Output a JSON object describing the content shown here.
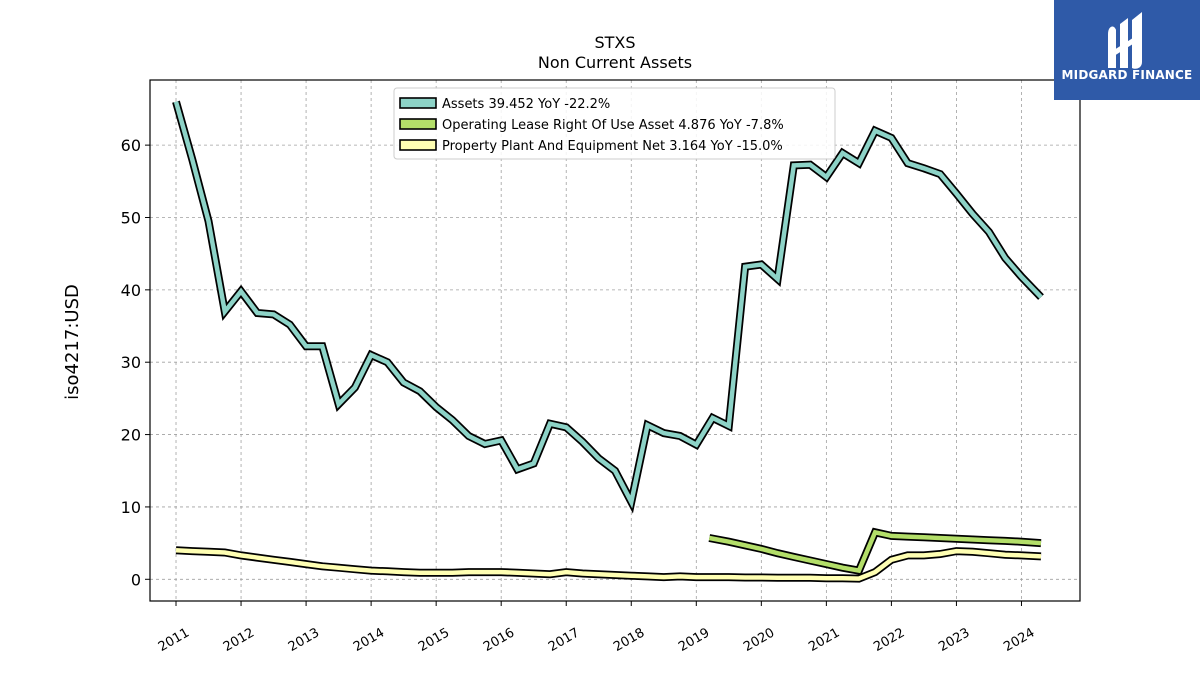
{
  "chart_data": {
    "type": "line",
    "title": "STXS",
    "subtitle": "Non Current  Assets",
    "xlabel": "",
    "ylabel": "iso4217:USD",
    "xlim": [
      2010.6,
      2024.9
    ],
    "ylim": [
      -3,
      69
    ],
    "x_ticks": [
      "2011",
      "2012",
      "2013",
      "2014",
      "2015",
      "2016",
      "2017",
      "2018",
      "2019",
      "2020",
      "2021",
      "2022",
      "2023",
      "2024"
    ],
    "y_ticks": [
      "0",
      "10",
      "20",
      "30",
      "40",
      "50",
      "60"
    ],
    "grid": true,
    "legend_position": "top-center",
    "series": [
      {
        "name": "Assets  39.452 YoY -22.2%",
        "color": "#8dd3c7",
        "x": [
          2011.0,
          2011.25,
          2011.5,
          2011.75,
          2012.0,
          2012.25,
          2012.5,
          2012.75,
          2013.0,
          2013.25,
          2013.5,
          2013.75,
          2014.0,
          2014.25,
          2014.5,
          2014.75,
          2015.0,
          2015.25,
          2015.5,
          2015.75,
          2016.0,
          2016.25,
          2016.5,
          2016.75,
          2017.0,
          2017.25,
          2017.5,
          2017.75,
          2018.0,
          2018.25,
          2018.5,
          2018.75,
          2019.0,
          2019.25,
          2019.5,
          2019.75,
          2020.0,
          2020.25,
          2020.5,
          2020.75,
          2021.0,
          2021.25,
          2021.5,
          2021.75,
          2022.0,
          2022.25,
          2022.5,
          2022.75,
          2023.0,
          2023.25,
          2023.5,
          2023.75,
          2024.0,
          2024.3
        ],
        "y": [
          66.0,
          58.0,
          49.5,
          37.0,
          39.8,
          36.8,
          36.6,
          35.2,
          32.2,
          32.2,
          24.2,
          26.5,
          31.0,
          30.0,
          27.2,
          26.0,
          23.8,
          22.0,
          19.8,
          18.7,
          19.2,
          15.2,
          16.0,
          21.5,
          21.0,
          19.0,
          16.7,
          15.0,
          10.7,
          21.3,
          20.2,
          19.8,
          18.6,
          22.3,
          21.2,
          43.2,
          43.5,
          41.5,
          57.2,
          57.3,
          55.6,
          58.9,
          57.5,
          62.0,
          61.0,
          57.5,
          56.8,
          56.0,
          53.3,
          50.5,
          48.0,
          44.4,
          41.8,
          39.0
        ]
      },
      {
        "name": "Operating Lease Right Of Use Asset  4.876 YoY -7.8%",
        "color": "#b3de69",
        "x": [
          2019.2,
          2019.5,
          2019.75,
          2020.0,
          2020.25,
          2020.5,
          2020.75,
          2021.0,
          2021.25,
          2021.5,
          2021.75,
          2022.0,
          2022.25,
          2022.5,
          2022.75,
          2023.0,
          2023.25,
          2023.5,
          2023.75,
          2024.0,
          2024.3
        ],
        "y": [
          5.7,
          5.2,
          4.7,
          4.2,
          3.6,
          3.1,
          2.6,
          2.1,
          1.6,
          1.2,
          6.5,
          6.0,
          5.9,
          5.8,
          5.7,
          5.6,
          5.5,
          5.4,
          5.3,
          5.2,
          5.0
        ]
      },
      {
        "name": "Property Plant And Equipment Net  3.164 YoY -15.0%",
        "color": "#ffffb3",
        "x": [
          2011.0,
          2011.25,
          2011.5,
          2011.75,
          2012.0,
          2012.25,
          2012.5,
          2012.75,
          2013.0,
          2013.25,
          2013.5,
          2013.75,
          2014.0,
          2014.25,
          2014.5,
          2014.75,
          2015.0,
          2015.25,
          2015.5,
          2015.75,
          2016.0,
          2016.25,
          2016.5,
          2016.75,
          2017.0,
          2017.25,
          2017.5,
          2017.75,
          2018.0,
          2018.25,
          2018.5,
          2018.75,
          2019.0,
          2019.25,
          2019.5,
          2019.75,
          2020.0,
          2020.25,
          2020.5,
          2020.75,
          2021.0,
          2021.25,
          2021.5,
          2021.75,
          2022.0,
          2022.25,
          2022.5,
          2022.75,
          2023.0,
          2023.25,
          2023.5,
          2023.75,
          2024.0,
          2024.3
        ],
        "y": [
          4.0,
          3.9,
          3.8,
          3.7,
          3.3,
          3.0,
          2.7,
          2.4,
          2.1,
          1.8,
          1.6,
          1.4,
          1.2,
          1.1,
          1.0,
          0.9,
          0.9,
          0.9,
          1.0,
          1.0,
          1.0,
          0.9,
          0.8,
          0.7,
          1.0,
          0.8,
          0.7,
          0.6,
          0.5,
          0.4,
          0.3,
          0.4,
          0.3,
          0.3,
          0.3,
          0.25,
          0.25,
          0.2,
          0.2,
          0.2,
          0.15,
          0.15,
          0.1,
          1.0,
          2.7,
          3.3,
          3.3,
          3.5,
          3.9,
          3.8,
          3.6,
          3.4,
          3.3,
          3.164
        ]
      }
    ]
  },
  "brand": {
    "name": "MIDGARD FINANCE",
    "bg_color": "#2f5aa8"
  }
}
